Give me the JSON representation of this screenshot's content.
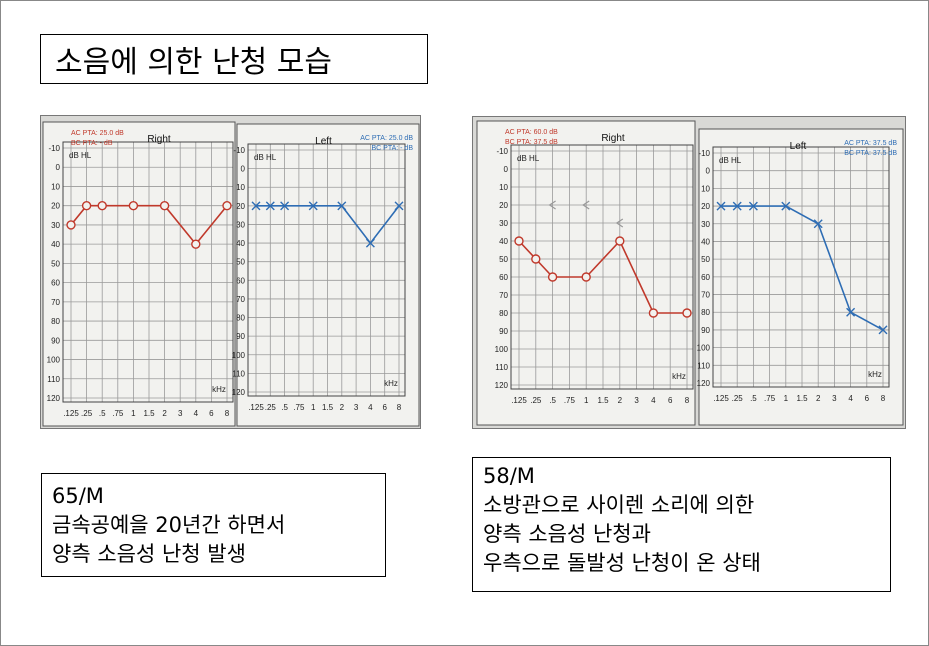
{
  "slide": {
    "title": "소음에 의한 난청 모습"
  },
  "cases": [
    {
      "lines": [
        "65/M",
        "금속공예을  20년간 하면서",
        "양측 소음성 난청 발생"
      ]
    },
    {
      "lines": [
        "58/M",
        "소방관으로 사이렌 소리에 의한",
        "양측 소음성 난청과",
        "우측으로 돌발성 난청이 온 상태"
      ]
    }
  ],
  "chart_data": [
    {
      "type": "line",
      "title": "Right",
      "pta_labels": [
        "AC PTA: 25.0 dB",
        "BC PTA: - dB"
      ],
      "ylabel": "dB HL",
      "xlabel": "kHz",
      "x_ticks": [
        ".125",
        ".25",
        ".5",
        ".75",
        "1",
        "1.5",
        "2",
        "3",
        "4",
        "6",
        "8"
      ],
      "y_ticks": [
        "-10",
        "0",
        "10",
        "20",
        "30",
        "40",
        "50",
        "60",
        "70",
        "80",
        "90",
        "100",
        "110",
        "120"
      ],
      "ylim": [
        -10,
        120
      ],
      "series": [
        {
          "marker": "O",
          "color": "#c0392b",
          "x": [
            ".125",
            ".25",
            ".5",
            "1",
            "2",
            "4",
            "8"
          ],
          "y": [
            30,
            20,
            20,
            20,
            20,
            40,
            20
          ]
        }
      ]
    },
    {
      "type": "line",
      "title": "Left",
      "pta_labels": [
        "AC PTA: 25.0 dB",
        "BC PTA: - dB"
      ],
      "ylabel": "dB HL",
      "xlabel": "kHz",
      "x_ticks": [
        ".125",
        ".25",
        ".5",
        ".75",
        "1",
        "1.5",
        "2",
        "3",
        "4",
        "6",
        "8"
      ],
      "y_ticks": [
        "-10",
        "0",
        "10",
        "20",
        "30",
        "40",
        "50",
        "60",
        "70",
        "80",
        "90",
        "100",
        "110",
        "120"
      ],
      "ylim": [
        -10,
        120
      ],
      "series": [
        {
          "marker": "X",
          "color": "#2e6db4",
          "x": [
            ".125",
            ".25",
            ".5",
            "1",
            "2",
            "4",
            "8"
          ],
          "y": [
            20,
            20,
            20,
            20,
            20,
            40,
            20
          ]
        }
      ]
    },
    {
      "type": "line",
      "title": "Right",
      "pta_labels": [
        "AC PTA: 60.0 dB",
        "BC PTA: 37.5 dB"
      ],
      "ylabel": "dB HL",
      "xlabel": "kHz",
      "x_ticks": [
        ".125",
        ".25",
        ".5",
        ".75",
        "1",
        "1.5",
        "2",
        "3",
        "4",
        "6",
        "8"
      ],
      "y_ticks": [
        "-10",
        "0",
        "10",
        "20",
        "30",
        "40",
        "50",
        "60",
        "70",
        "80",
        "90",
        "100",
        "110",
        "120"
      ],
      "ylim": [
        -10,
        120
      ],
      "series": [
        {
          "marker": "O",
          "color": "#c0392b",
          "x": [
            ".125",
            ".25",
            ".5",
            "1",
            "2",
            "4",
            "8"
          ],
          "y": [
            40,
            50,
            60,
            60,
            40,
            80,
            80
          ]
        },
        {
          "marker": "<",
          "color": "#999999",
          "line": false,
          "x": [
            ".5",
            "1",
            "2"
          ],
          "y": [
            20,
            20,
            30
          ]
        }
      ]
    },
    {
      "type": "line",
      "title": "Left",
      "pta_labels": [
        "AC PTA: 37.5 dB",
        "BC PTA: 37.5 dB"
      ],
      "ylabel": "dB HL",
      "xlabel": "kHz",
      "x_ticks": [
        ".125",
        ".25",
        ".5",
        ".75",
        "1",
        "1.5",
        "2",
        "3",
        "4",
        "6",
        "8"
      ],
      "y_ticks": [
        "-10",
        "0",
        "10",
        "20",
        "30",
        "40",
        "50",
        "60",
        "70",
        "80",
        "90",
        "100",
        "110",
        "120"
      ],
      "ylim": [
        -10,
        120
      ],
      "series": [
        {
          "marker": "X",
          "color": "#2e6db4",
          "x": [
            ".125",
            ".25",
            ".5",
            "1",
            "2",
            "4",
            "8"
          ],
          "y": [
            20,
            20,
            20,
            20,
            30,
            80,
            90
          ]
        }
      ]
    }
  ]
}
